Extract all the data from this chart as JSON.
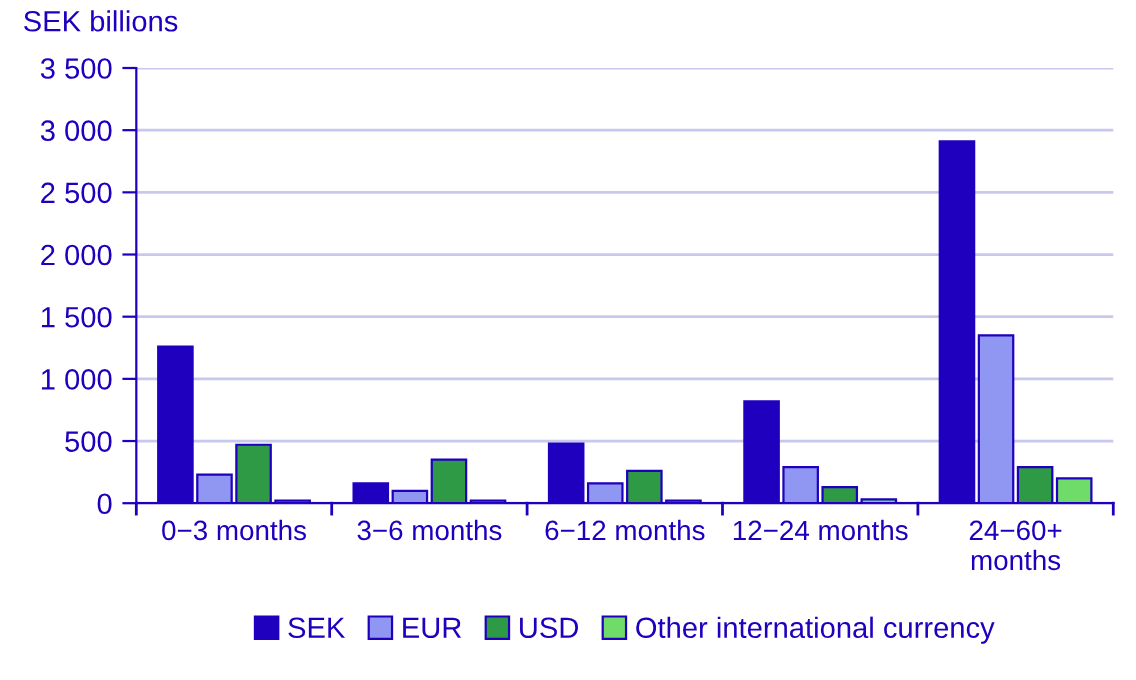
{
  "chart_data": {
    "type": "bar",
    "ylabel": "SEK billions",
    "categories": [
      "0−3 months",
      "3−6 months",
      "6−12 months",
      "12−24 months",
      "24−60+\nmonths"
    ],
    "series": [
      {
        "name": "SEK",
        "color": "#1e00be",
        "values": [
          1260,
          160,
          480,
          820,
          2910
        ]
      },
      {
        "name": "EUR",
        "color": "#9097f2",
        "values": [
          230,
          100,
          160,
          290,
          1350
        ]
      },
      {
        "name": "USD",
        "color": "#2f9a46",
        "values": [
          470,
          350,
          260,
          130,
          290
        ]
      },
      {
        "name": "Other international currency",
        "color": "#6fdc6a",
        "values": [
          20,
          20,
          20,
          30,
          200
        ]
      }
    ],
    "ylim": [
      0,
      3500
    ],
    "yticks": [
      {
        "value": 0,
        "label": "0"
      },
      {
        "value": 500,
        "label": "500"
      },
      {
        "value": 1000,
        "label": "1 000"
      },
      {
        "value": 1500,
        "label": "1 500"
      },
      {
        "value": 2000,
        "label": "2 000"
      },
      {
        "value": 2500,
        "label": "2 500"
      },
      {
        "value": 3000,
        "label": "3 000"
      },
      {
        "value": 3500,
        "label": "3 500"
      }
    ],
    "grid": "y",
    "legend": "bottom"
  }
}
